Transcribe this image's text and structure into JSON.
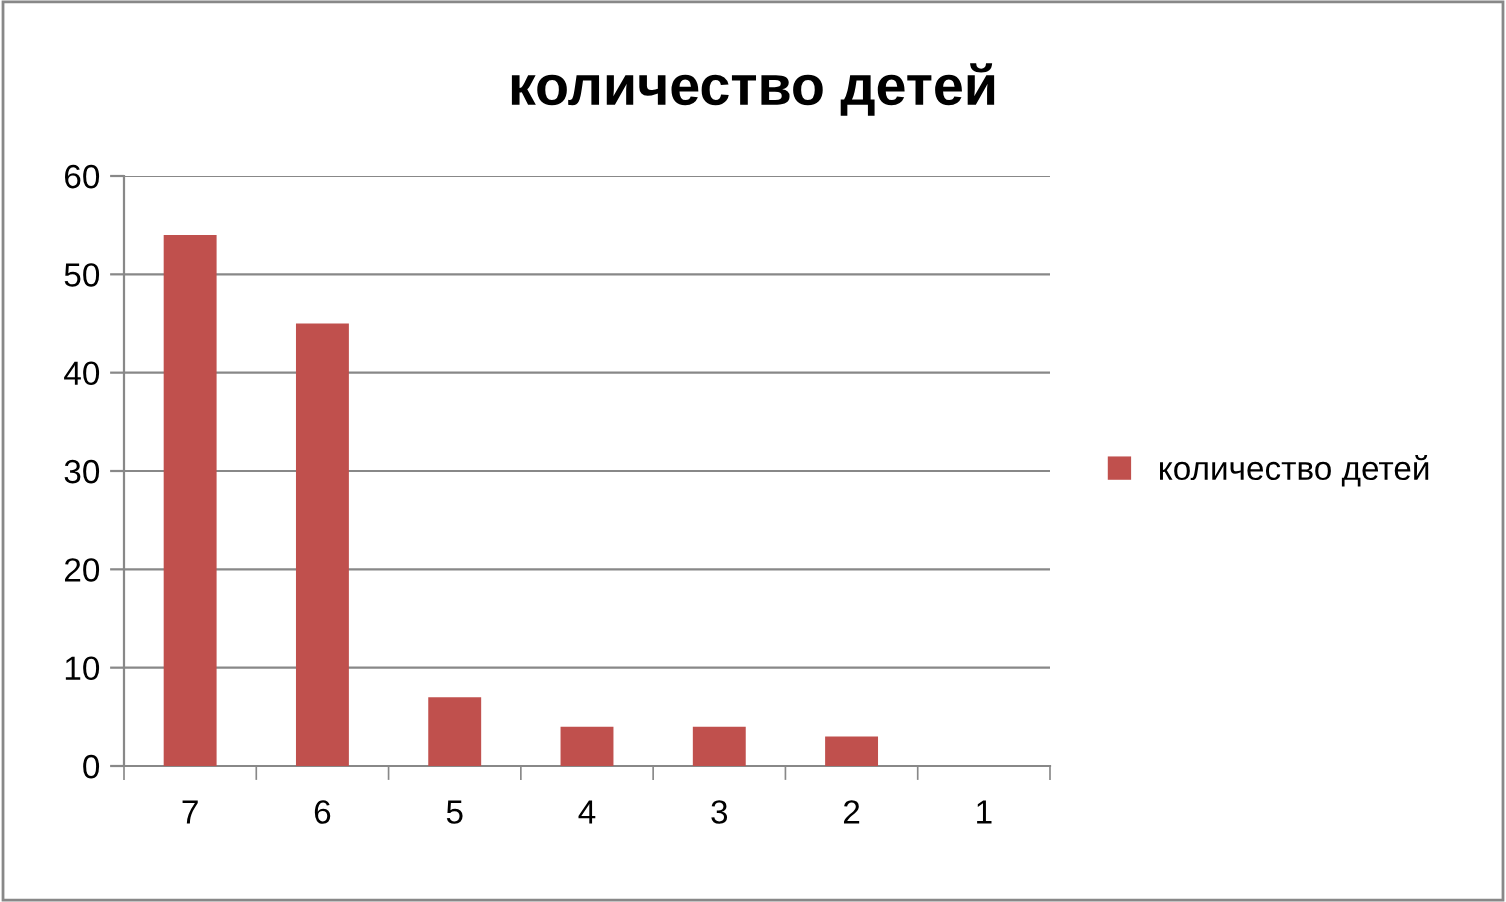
{
  "chart_data": {
    "type": "bar",
    "title": "количество детей",
    "categories": [
      "7",
      "6",
      "5",
      "4",
      "3",
      "2",
      "1"
    ],
    "series": [
      {
        "name": "количество детей",
        "color": "#c0504d",
        "values": [
          54,
          45,
          7,
          4,
          4,
          3,
          0
        ]
      }
    ],
    "ylim": [
      0,
      60
    ],
    "yticks": [
      0,
      10,
      20,
      30,
      40,
      50,
      60
    ],
    "grid": "y",
    "legend": "right"
  }
}
